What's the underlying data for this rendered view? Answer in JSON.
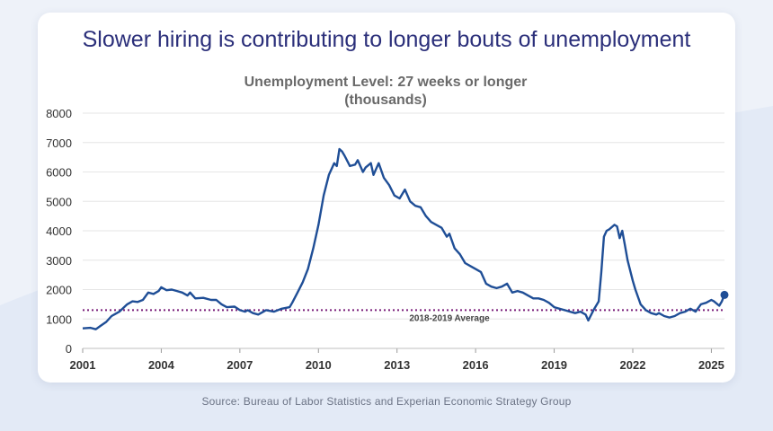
{
  "headline": "Slower hiring is contributing to longer bouts of unemployment",
  "source": "Source: Bureau of Labor Statistics and Experian Economic Strategy Group",
  "colors": {
    "line": "#1f4e96",
    "reference": "#7a1f7a",
    "headline": "#2b2f7a",
    "background": "#eef2f9"
  },
  "chart_data": {
    "type": "line",
    "title_lines": [
      "Unemployment Level: 27 weeks or longer",
      "(thousands)"
    ],
    "xlabel": "",
    "ylabel": "",
    "xlim": [
      2001,
      2025.5
    ],
    "ylim": [
      0,
      8000
    ],
    "y_ticks": [
      "0",
      "1000",
      "2000",
      "3000",
      "4000",
      "5000",
      "6000",
      "7000",
      "8000"
    ],
    "x_ticks": [
      "2001",
      "2004",
      "2007",
      "2010",
      "2013",
      "2016",
      "2019",
      "2022",
      "2025"
    ],
    "grid": true,
    "series": [
      {
        "values": [
          [
            2001.0,
            680
          ],
          [
            2001.3,
            700
          ],
          [
            2001.5,
            650
          ],
          [
            2001.7,
            780
          ],
          [
            2001.9,
            900
          ],
          [
            2002.1,
            1100
          ],
          [
            2002.4,
            1250
          ],
          [
            2002.7,
            1500
          ],
          [
            2002.9,
            1600
          ],
          [
            2003.1,
            1580
          ],
          [
            2003.3,
            1650
          ],
          [
            2003.5,
            1900
          ],
          [
            2003.7,
            1850
          ],
          [
            2003.9,
            1950
          ],
          [
            2004.0,
            2080
          ],
          [
            2004.2,
            1980
          ],
          [
            2004.4,
            2000
          ],
          [
            2004.6,
            1950
          ],
          [
            2004.8,
            1900
          ],
          [
            2005.0,
            1800
          ],
          [
            2005.1,
            1900
          ],
          [
            2005.3,
            1700
          ],
          [
            2005.6,
            1720
          ],
          [
            2005.9,
            1650
          ],
          [
            2006.1,
            1650
          ],
          [
            2006.3,
            1500
          ],
          [
            2006.5,
            1400
          ],
          [
            2006.8,
            1420
          ],
          [
            2007.0,
            1300
          ],
          [
            2007.2,
            1250
          ],
          [
            2007.3,
            1300
          ],
          [
            2007.5,
            1200
          ],
          [
            2007.7,
            1150
          ],
          [
            2008.0,
            1300
          ],
          [
            2008.3,
            1250
          ],
          [
            2008.6,
            1350
          ],
          [
            2008.9,
            1400
          ],
          [
            2009.0,
            1550
          ],
          [
            2009.2,
            1900
          ],
          [
            2009.4,
            2250
          ],
          [
            2009.6,
            2700
          ],
          [
            2009.8,
            3400
          ],
          [
            2010.0,
            4200
          ],
          [
            2010.2,
            5200
          ],
          [
            2010.4,
            5900
          ],
          [
            2010.6,
            6300
          ],
          [
            2010.7,
            6200
          ],
          [
            2010.8,
            6780
          ],
          [
            2010.9,
            6700
          ],
          [
            2011.0,
            6550
          ],
          [
            2011.2,
            6200
          ],
          [
            2011.4,
            6250
          ],
          [
            2011.5,
            6400
          ],
          [
            2011.7,
            6000
          ],
          [
            2011.8,
            6150
          ],
          [
            2012.0,
            6300
          ],
          [
            2012.1,
            5900
          ],
          [
            2012.3,
            6300
          ],
          [
            2012.5,
            5800
          ],
          [
            2012.7,
            5550
          ],
          [
            2012.9,
            5200
          ],
          [
            2013.1,
            5100
          ],
          [
            2013.3,
            5400
          ],
          [
            2013.5,
            5000
          ],
          [
            2013.7,
            4850
          ],
          [
            2013.9,
            4800
          ],
          [
            2014.1,
            4500
          ],
          [
            2014.3,
            4300
          ],
          [
            2014.5,
            4200
          ],
          [
            2014.7,
            4100
          ],
          [
            2014.9,
            3800
          ],
          [
            2015.0,
            3900
          ],
          [
            2015.2,
            3400
          ],
          [
            2015.4,
            3200
          ],
          [
            2015.6,
            2900
          ],
          [
            2015.8,
            2800
          ],
          [
            2016.0,
            2700
          ],
          [
            2016.2,
            2600
          ],
          [
            2016.4,
            2200
          ],
          [
            2016.6,
            2100
          ],
          [
            2016.8,
            2050
          ],
          [
            2017.0,
            2100
          ],
          [
            2017.2,
            2200
          ],
          [
            2017.4,
            1900
          ],
          [
            2017.6,
            1950
          ],
          [
            2017.8,
            1900
          ],
          [
            2018.0,
            1800
          ],
          [
            2018.2,
            1700
          ],
          [
            2018.4,
            1700
          ],
          [
            2018.6,
            1650
          ],
          [
            2018.8,
            1550
          ],
          [
            2019.0,
            1400
          ],
          [
            2019.2,
            1350
          ],
          [
            2019.4,
            1300
          ],
          [
            2019.6,
            1250
          ],
          [
            2019.8,
            1200
          ],
          [
            2020.0,
            1250
          ],
          [
            2020.2,
            1150
          ],
          [
            2020.3,
            950
          ],
          [
            2020.5,
            1300
          ],
          [
            2020.7,
            1600
          ],
          [
            2020.8,
            2600
          ],
          [
            2020.9,
            3800
          ],
          [
            2021.0,
            4000
          ],
          [
            2021.1,
            4050
          ],
          [
            2021.3,
            4200
          ],
          [
            2021.4,
            4150
          ],
          [
            2021.5,
            3750
          ],
          [
            2021.6,
            4000
          ],
          [
            2021.7,
            3500
          ],
          [
            2021.8,
            3000
          ],
          [
            2022.0,
            2300
          ],
          [
            2022.1,
            2000
          ],
          [
            2022.3,
            1500
          ],
          [
            2022.5,
            1300
          ],
          [
            2022.7,
            1200
          ],
          [
            2022.9,
            1150
          ],
          [
            2023.0,
            1200
          ],
          [
            2023.2,
            1100
          ],
          [
            2023.4,
            1050
          ],
          [
            2023.6,
            1100
          ],
          [
            2023.8,
            1200
          ],
          [
            2024.0,
            1250
          ],
          [
            2024.2,
            1350
          ],
          [
            2024.4,
            1250
          ],
          [
            2024.6,
            1500
          ],
          [
            2024.8,
            1550
          ],
          [
            2025.0,
            1650
          ],
          [
            2025.1,
            1600
          ],
          [
            2025.3,
            1450
          ],
          [
            2025.4,
            1600
          ],
          [
            2025.5,
            1820
          ]
        ]
      }
    ],
    "reference_line": {
      "label": "2018-2019 Average",
      "value": 1300
    }
  }
}
